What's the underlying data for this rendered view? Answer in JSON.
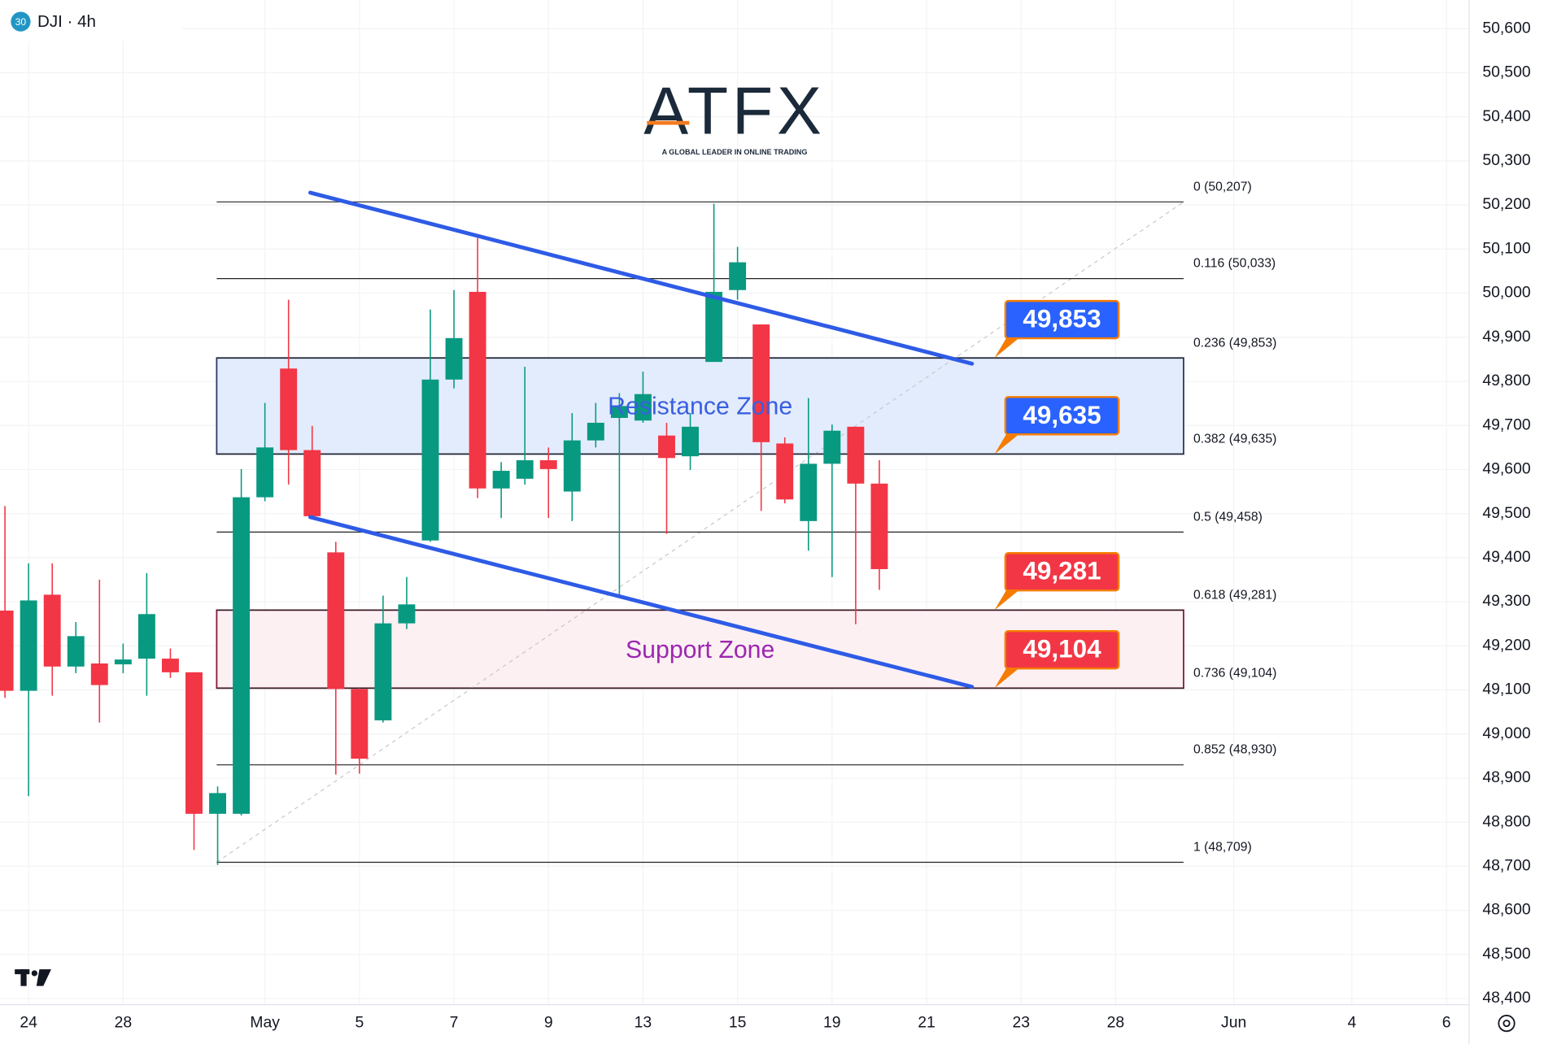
{
  "header": {
    "badge": "30",
    "symbol": "DJI · 4h"
  },
  "logo": {
    "name": "ATFX",
    "tagline": "A GLOBAL LEADER IN ONLINE TRADING"
  },
  "chart_data": {
    "type": "candlestick",
    "x": [
      0,
      1,
      2,
      3,
      4,
      5,
      6,
      7,
      8,
      9,
      10,
      11,
      12,
      13,
      14,
      15,
      16,
      17,
      18,
      19,
      20,
      21,
      22,
      23,
      24,
      25,
      26,
      27,
      28,
      29,
      30,
      31,
      32,
      33,
      34,
      35,
      36,
      37
    ],
    "open": [
      49280,
      49098,
      49316,
      49153,
      49160,
      49158,
      49171,
      49171,
      49140,
      48819,
      48819,
      49537,
      49829,
      49644,
      49412,
      49102,
      49031,
      49251,
      49439,
      49804,
      50003,
      49557,
      49579,
      49621,
      49550,
      49666,
      49717,
      49711,
      49677,
      49630,
      49844,
      50007,
      49929,
      49659,
      49483,
      49613,
      49697,
      49568
    ],
    "high": [
      49517,
      49387,
      49387,
      49254,
      49350,
      49205,
      49365,
      49194,
      49140,
      48881,
      49601,
      49751,
      49985,
      49699,
      49436,
      49104,
      49314,
      49356,
      49963,
      50007,
      50125,
      49617,
      49833,
      49650,
      49728,
      49751,
      49773,
      49822,
      49706,
      49728,
      50203,
      50105,
      49929,
      49673,
      49762,
      49702,
      49697,
      49621
    ],
    "low": [
      49082,
      48859,
      49087,
      49138,
      49026,
      49138,
      49087,
      49127,
      48737,
      48703,
      48815,
      49528,
      49566,
      49490,
      48908,
      48910,
      49026,
      49238,
      49436,
      49784,
      49535,
      49490,
      49566,
      49490,
      49483,
      49650,
      49316,
      49706,
      49454,
      49599,
      49844,
      49985,
      49506,
      49523,
      49416,
      49356,
      49249,
      49327
    ],
    "close": [
      49098,
      49303,
      49153,
      49222,
      49111,
      49169,
      49272,
      49140,
      48819,
      48866,
      49537,
      49650,
      49644,
      49494,
      49102,
      48944,
      49251,
      49294,
      49804,
      49898,
      49557,
      49597,
      49621,
      49601,
      49666,
      49706,
      49744,
      49771,
      49626,
      49697,
      50003,
      50070,
      49662,
      49532,
      49613,
      49688,
      49568,
      49374
    ],
    "up_color": "#089981",
    "down_color": "#f23645",
    "xlim": [
      -0.21,
      61.96
    ],
    "ylim": [
      48386,
      50665
    ],
    "grid": true,
    "xticks": [
      {
        "value": 1,
        "label": "24"
      },
      {
        "value": 5,
        "label": "28"
      },
      {
        "value": 11,
        "label": "May"
      },
      {
        "value": 15,
        "label": "5"
      },
      {
        "value": 19,
        "label": "7"
      },
      {
        "value": 23,
        "label": "9"
      },
      {
        "value": 27,
        "label": "13"
      },
      {
        "value": 31,
        "label": "15"
      },
      {
        "value": 35,
        "label": "19"
      },
      {
        "value": 39,
        "label": "21"
      },
      {
        "value": 43,
        "label": "23"
      },
      {
        "value": 47,
        "label": "28"
      },
      {
        "value": 52,
        "label": "Jun"
      },
      {
        "value": 57,
        "label": "4"
      },
      {
        "value": 61,
        "label": "6"
      }
    ],
    "yticks": [
      {
        "value": 50600,
        "label": "50,600"
      },
      {
        "value": 50500,
        "label": "50,500"
      },
      {
        "value": 50400,
        "label": "50,400"
      },
      {
        "value": 50300,
        "label": "50,300"
      },
      {
        "value": 50200,
        "label": "50,200"
      },
      {
        "value": 50100,
        "label": "50,100"
      },
      {
        "value": 50000,
        "label": "50,000"
      },
      {
        "value": 49900,
        "label": "49,900"
      },
      {
        "value": 49800,
        "label": "49,800"
      },
      {
        "value": 49700,
        "label": "49,700"
      },
      {
        "value": 49600,
        "label": "49,600"
      },
      {
        "value": 49500,
        "label": "49,500"
      },
      {
        "value": 49400,
        "label": "49,400"
      },
      {
        "value": 49300,
        "label": "49,300"
      },
      {
        "value": 49200,
        "label": "49,200"
      },
      {
        "value": 49100,
        "label": "49,100"
      },
      {
        "value": 49000,
        "label": "49,000"
      },
      {
        "value": 48900,
        "label": "48,900"
      },
      {
        "value": 48800,
        "label": "48,800"
      },
      {
        "value": 48700,
        "label": "48,700"
      },
      {
        "value": 48600,
        "label": "48,600"
      },
      {
        "value": 48500,
        "label": "48,500"
      },
      {
        "value": 48400,
        "label": "48,400"
      }
    ],
    "fibonacci": {
      "color": "#222222",
      "anchor": {
        "x": [
          8.96,
          49.875
        ],
        "y": [
          48709,
          50207
        ]
      },
      "levels": [
        {
          "label": "0 (50,207)",
          "value": 50207
        },
        {
          "label": "0.116 (50,033)",
          "value": 50033
        },
        {
          "label": "0.236 (49,853)",
          "value": 49853
        },
        {
          "label": "0.382 (49,635)",
          "value": 49635
        },
        {
          "label": "0.5 (49,458)",
          "value": 49458
        },
        {
          "label": "0.618 (49,281)",
          "value": 49281
        },
        {
          "label": "0.736 (49,104)",
          "value": 49104
        },
        {
          "label": "0.852 (48,930)",
          "value": 48930
        },
        {
          "label": "1 (48,709)",
          "value": 48709
        }
      ]
    },
    "zones": [
      {
        "name": "Resistance Zone",
        "top": 49853,
        "bottom": 49635,
        "fill": "#e3ecfc",
        "stroke": "#2b3a67",
        "text_color": "#3a5fe0"
      },
      {
        "name": "Support Zone",
        "top": 49281,
        "bottom": 49104,
        "fill": "#fcf0f3",
        "stroke": "#8a1a3c",
        "text_color": "#9c27b0"
      }
    ],
    "trendlines": [
      {
        "color": "#2e5be6",
        "x": [
          12.92,
          40.92
        ],
        "y": [
          50228,
          49840
        ]
      },
      {
        "color": "#2e5be6",
        "x": [
          12.92,
          40.92
        ],
        "y": [
          49492,
          49107
        ]
      }
    ],
    "price_labels": [
      {
        "value": 49853,
        "label": "49,853",
        "color": "#2962ff"
      },
      {
        "value": 49635,
        "label": "49,635",
        "color": "#2962ff"
      },
      {
        "value": 49281,
        "label": "49,281",
        "color": "#f23645"
      },
      {
        "value": 49104,
        "label": "49,104",
        "color": "#f23645"
      }
    ]
  }
}
